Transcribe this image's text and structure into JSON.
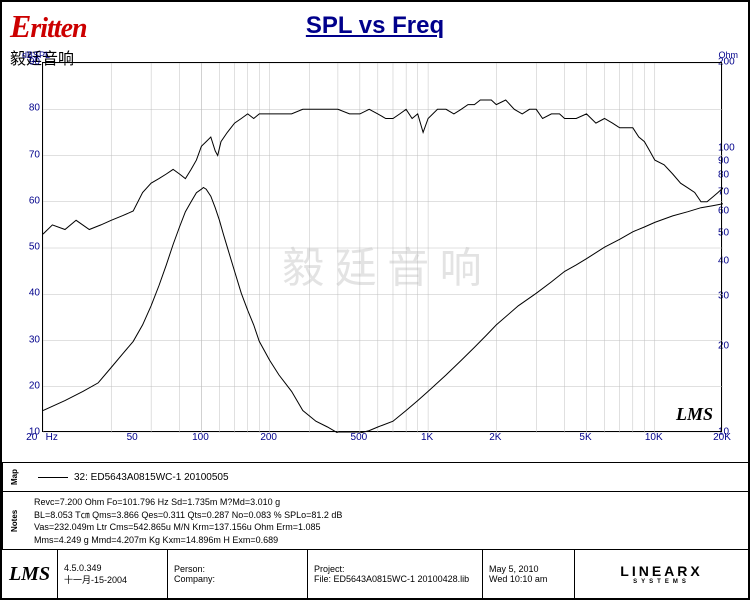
{
  "logo": {
    "main": "Eritten",
    "sub": "毅廷音响"
  },
  "title": "SPL vs Freq",
  "axes": {
    "left_label": "dBSPL",
    "right_label": "Ohm",
    "left_ticks": [
      10,
      20,
      30,
      40,
      50,
      60,
      70,
      80,
      90
    ],
    "left_min": 10,
    "left_max": 90,
    "right_ticks": [
      10,
      20,
      30,
      40,
      50,
      60,
      70,
      80,
      90,
      100,
      200
    ],
    "right_min": 10,
    "right_max": 200,
    "right_scale": "log",
    "x_min": 20,
    "x_max": 20000,
    "x_scale": "log",
    "x_ticks": [
      {
        "v": 20,
        "l": "20"
      },
      {
        "v": 50,
        "l": "50"
      },
      {
        "v": 100,
        "l": "100"
      },
      {
        "v": 200,
        "l": "200"
      },
      {
        "v": 500,
        "l": "500"
      },
      {
        "v": 1000,
        "l": "1K"
      },
      {
        "v": 2000,
        "l": "2K"
      },
      {
        "v": 5000,
        "l": "5K"
      },
      {
        "v": 10000,
        "l": "10K"
      },
      {
        "v": 20000,
        "l": "20K"
      }
    ],
    "x_unit": "Hz"
  },
  "series_spl": {
    "color": "#000000",
    "width": 1,
    "points": [
      [
        20,
        53
      ],
      [
        22,
        55
      ],
      [
        25,
        54
      ],
      [
        28,
        56
      ],
      [
        32,
        54
      ],
      [
        36,
        55
      ],
      [
        40,
        56
      ],
      [
        45,
        57
      ],
      [
        50,
        58
      ],
      [
        55,
        62
      ],
      [
        60,
        64
      ],
      [
        65,
        65
      ],
      [
        70,
        66
      ],
      [
        75,
        67
      ],
      [
        80,
        66
      ],
      [
        85,
        65
      ],
      [
        90,
        67
      ],
      [
        95,
        69
      ],
      [
        100,
        72
      ],
      [
        105,
        73
      ],
      [
        110,
        74
      ],
      [
        115,
        71
      ],
      [
        118,
        70
      ],
      [
        122,
        73
      ],
      [
        130,
        75
      ],
      [
        140,
        77
      ],
      [
        150,
        78
      ],
      [
        160,
        79
      ],
      [
        170,
        78
      ],
      [
        180,
        79
      ],
      [
        200,
        79
      ],
      [
        220,
        79
      ],
      [
        250,
        79
      ],
      [
        280,
        80
      ],
      [
        320,
        80
      ],
      [
        360,
        80
      ],
      [
        400,
        80
      ],
      [
        450,
        79
      ],
      [
        500,
        79
      ],
      [
        550,
        80
      ],
      [
        600,
        79
      ],
      [
        650,
        78
      ],
      [
        700,
        78
      ],
      [
        750,
        79
      ],
      [
        800,
        80
      ],
      [
        850,
        78
      ],
      [
        900,
        79
      ],
      [
        950,
        75
      ],
      [
        1000,
        78
      ],
      [
        1100,
        80
      ],
      [
        1200,
        80
      ],
      [
        1300,
        79
      ],
      [
        1400,
        80
      ],
      [
        1500,
        81
      ],
      [
        1600,
        81
      ],
      [
        1700,
        82
      ],
      [
        1800,
        82
      ],
      [
        1900,
        82
      ],
      [
        2000,
        81
      ],
      [
        2200,
        82
      ],
      [
        2400,
        80
      ],
      [
        2600,
        79
      ],
      [
        2800,
        80
      ],
      [
        3000,
        80
      ],
      [
        3200,
        78
      ],
      [
        3500,
        79
      ],
      [
        3800,
        79
      ],
      [
        4000,
        78
      ],
      [
        4500,
        78
      ],
      [
        5000,
        79
      ],
      [
        5500,
        77
      ],
      [
        6000,
        78
      ],
      [
        6500,
        77
      ],
      [
        7000,
        76
      ],
      [
        7500,
        76
      ],
      [
        8000,
        76
      ],
      [
        8500,
        74
      ],
      [
        9000,
        73
      ],
      [
        9500,
        71
      ],
      [
        10000,
        69
      ],
      [
        11000,
        68
      ],
      [
        12000,
        66
      ],
      [
        13000,
        64
      ],
      [
        14000,
        63
      ],
      [
        15000,
        62
      ],
      [
        16000,
        60
      ],
      [
        17000,
        60
      ],
      [
        18000,
        61
      ],
      [
        19000,
        62
      ],
      [
        20000,
        63
      ]
    ]
  },
  "series_imp": {
    "color": "#000000",
    "width": 1,
    "points": [
      [
        20,
        12
      ],
      [
        25,
        13
      ],
      [
        30,
        14
      ],
      [
        35,
        15
      ],
      [
        40,
        17
      ],
      [
        45,
        19
      ],
      [
        50,
        21
      ],
      [
        55,
        24
      ],
      [
        60,
        28
      ],
      [
        65,
        33
      ],
      [
        70,
        39
      ],
      [
        75,
        46
      ],
      [
        80,
        53
      ],
      [
        85,
        60
      ],
      [
        90,
        65
      ],
      [
        95,
        70
      ],
      [
        100,
        72
      ],
      [
        102,
        73
      ],
      [
        105,
        72
      ],
      [
        110,
        68
      ],
      [
        115,
        62
      ],
      [
        120,
        56
      ],
      [
        125,
        50
      ],
      [
        130,
        45
      ],
      [
        140,
        37
      ],
      [
        150,
        31
      ],
      [
        160,
        27
      ],
      [
        170,
        24
      ],
      [
        180,
        21
      ],
      [
        200,
        18
      ],
      [
        220,
        16
      ],
      [
        250,
        14
      ],
      [
        280,
        12
      ],
      [
        320,
        11
      ],
      [
        360,
        10.5
      ],
      [
        400,
        10
      ],
      [
        450,
        10
      ],
      [
        500,
        10
      ],
      [
        550,
        10.2
      ],
      [
        600,
        10.5
      ],
      [
        700,
        11
      ],
      [
        800,
        12
      ],
      [
        900,
        13
      ],
      [
        1000,
        14
      ],
      [
        1200,
        16
      ],
      [
        1400,
        18
      ],
      [
        1600,
        20
      ],
      [
        1800,
        22
      ],
      [
        2000,
        24
      ],
      [
        2500,
        28
      ],
      [
        3000,
        31
      ],
      [
        3500,
        34
      ],
      [
        4000,
        37
      ],
      [
        4500,
        39
      ],
      [
        5000,
        41
      ],
      [
        6000,
        45
      ],
      [
        7000,
        48
      ],
      [
        8000,
        51
      ],
      [
        9000,
        53
      ],
      [
        10000,
        55
      ],
      [
        12000,
        58
      ],
      [
        14000,
        60
      ],
      [
        16000,
        62
      ],
      [
        18000,
        63
      ],
      [
        20000,
        64
      ]
    ]
  },
  "grid": {
    "minor_color": "#c0c0c0",
    "log_decades": [
      20,
      100,
      1000,
      10000
    ]
  },
  "legend": {
    "line1": "32: ED5643A0815WC-1  20100505"
  },
  "notes": {
    "l1": "Revc=7.200 Ohm  Fo=101.796 Hz  Sd=1.735m M?Md=3.010 g",
    "l2": "BL=8.053 T㎝  Qms=3.866  Qes=0.311  Qts=0.287  No=0.083 %  SPLo=81.2 dB",
    "l3": "Vas=232.049m Ltr  Cms=542.865u M/N  Krm=137.156u Ohm  Erm=1.085",
    "l4": "Mms=4.249 g  Mmd=4.207m Kg  Kxm=14.896m H  Exm=0.689"
  },
  "footer": {
    "version": "4.5.0.349",
    "version_date": "十一月-15-2004",
    "person": "Person:",
    "company": "Company:",
    "project": "Project:",
    "file": "File: ED5643A0815WC-1 20100428.lib",
    "date1": "May  5, 2010",
    "date2": "Wed 10:10 am",
    "brand": "LINEARX",
    "brand_sub": "SYSTEMS"
  },
  "watermark": "毅 廷 音 响",
  "chart_badge": "LMS"
}
